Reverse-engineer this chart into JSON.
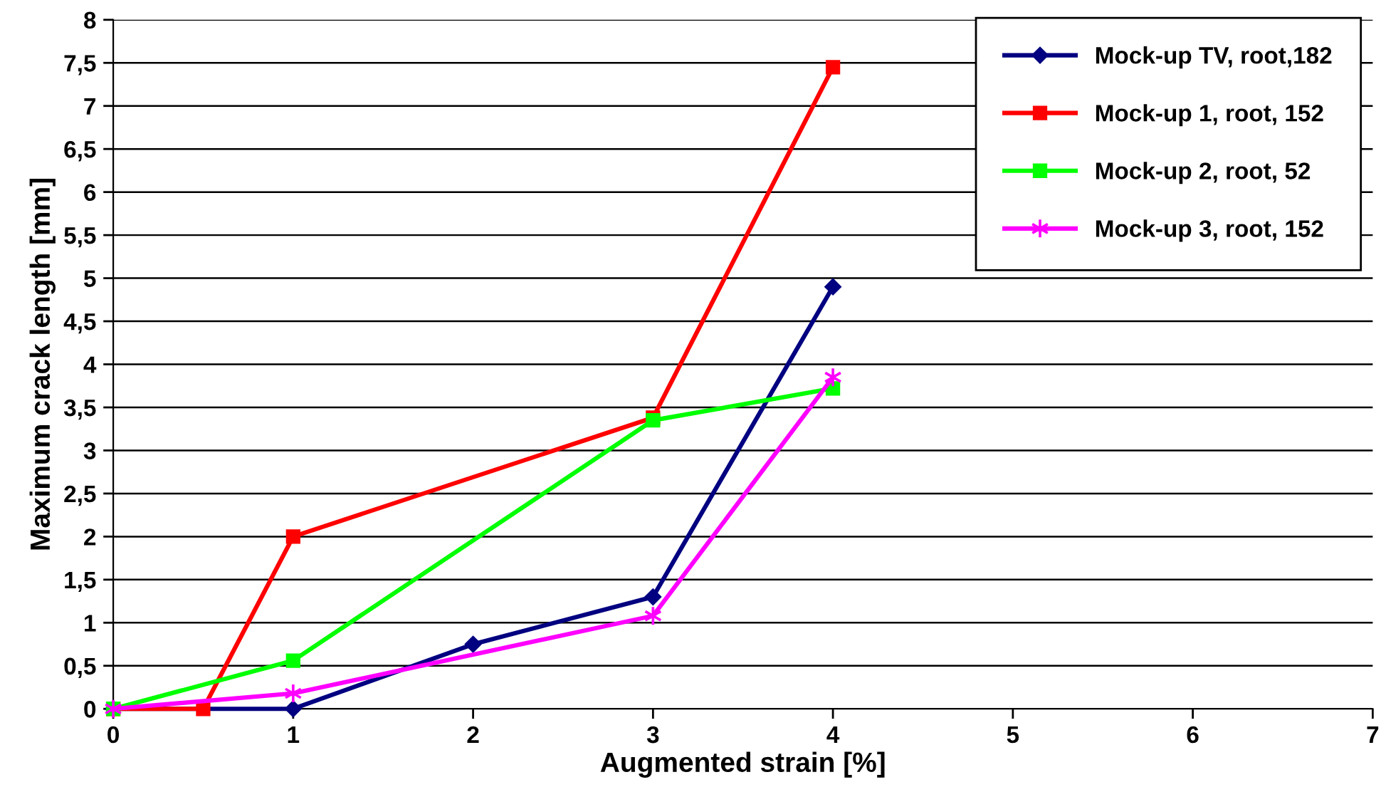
{
  "chart_data": {
    "type": "line",
    "xlabel": "Augmented strain [%]",
    "ylabel": "Maximum crack length [mm]",
    "xlim": [
      0,
      7
    ],
    "xticks": [
      0,
      1,
      2,
      3,
      4,
      5,
      6,
      7
    ],
    "ylim": [
      0,
      8
    ],
    "yticks": [
      0,
      {
        "value": 0.5,
        "label": "0,5"
      },
      1,
      {
        "value": 1.5,
        "label": "1,5"
      },
      2,
      {
        "value": 2.5,
        "label": "2,5"
      },
      3,
      {
        "value": 3.5,
        "label": "3,5"
      },
      4,
      {
        "value": 4.5,
        "label": "4,5"
      },
      5,
      {
        "value": 5.5,
        "label": "5,5"
      },
      6,
      {
        "value": 6.5,
        "label": "6,5"
      },
      7,
      {
        "value": 7.5,
        "label": "7,5"
      },
      8
    ],
    "grid": "y",
    "legend": "top right",
    "line_style": "solid",
    "series": [
      {
        "name": "Mock-up TV, root,182",
        "color": "#000080",
        "marker": "diamond",
        "x": [
          0,
          1,
          2,
          3,
          4
        ],
        "values": [
          0,
          0,
          0.75,
          1.3,
          4.9
        ]
      },
      {
        "name": "Mock-up 1, root, 152",
        "color": "#ff0000",
        "marker": "square",
        "x": [
          0,
          0.5,
          1,
          3,
          4
        ],
        "values": [
          0,
          0,
          2,
          3.38,
          7.45
        ]
      },
      {
        "name": "Mock-up 2, root, 52",
        "color": "#00ff00",
        "marker": "square",
        "x": [
          0,
          1,
          3,
          4
        ],
        "values": [
          0,
          0.56,
          3.35,
          3.72
        ]
      },
      {
        "name": "Mock-up 3, root, 152",
        "color": "#ff00ff",
        "marker": "cross",
        "x": [
          0,
          1,
          3,
          4
        ],
        "values": [
          0,
          0.18,
          1.08,
          3.85
        ]
      }
    ]
  }
}
